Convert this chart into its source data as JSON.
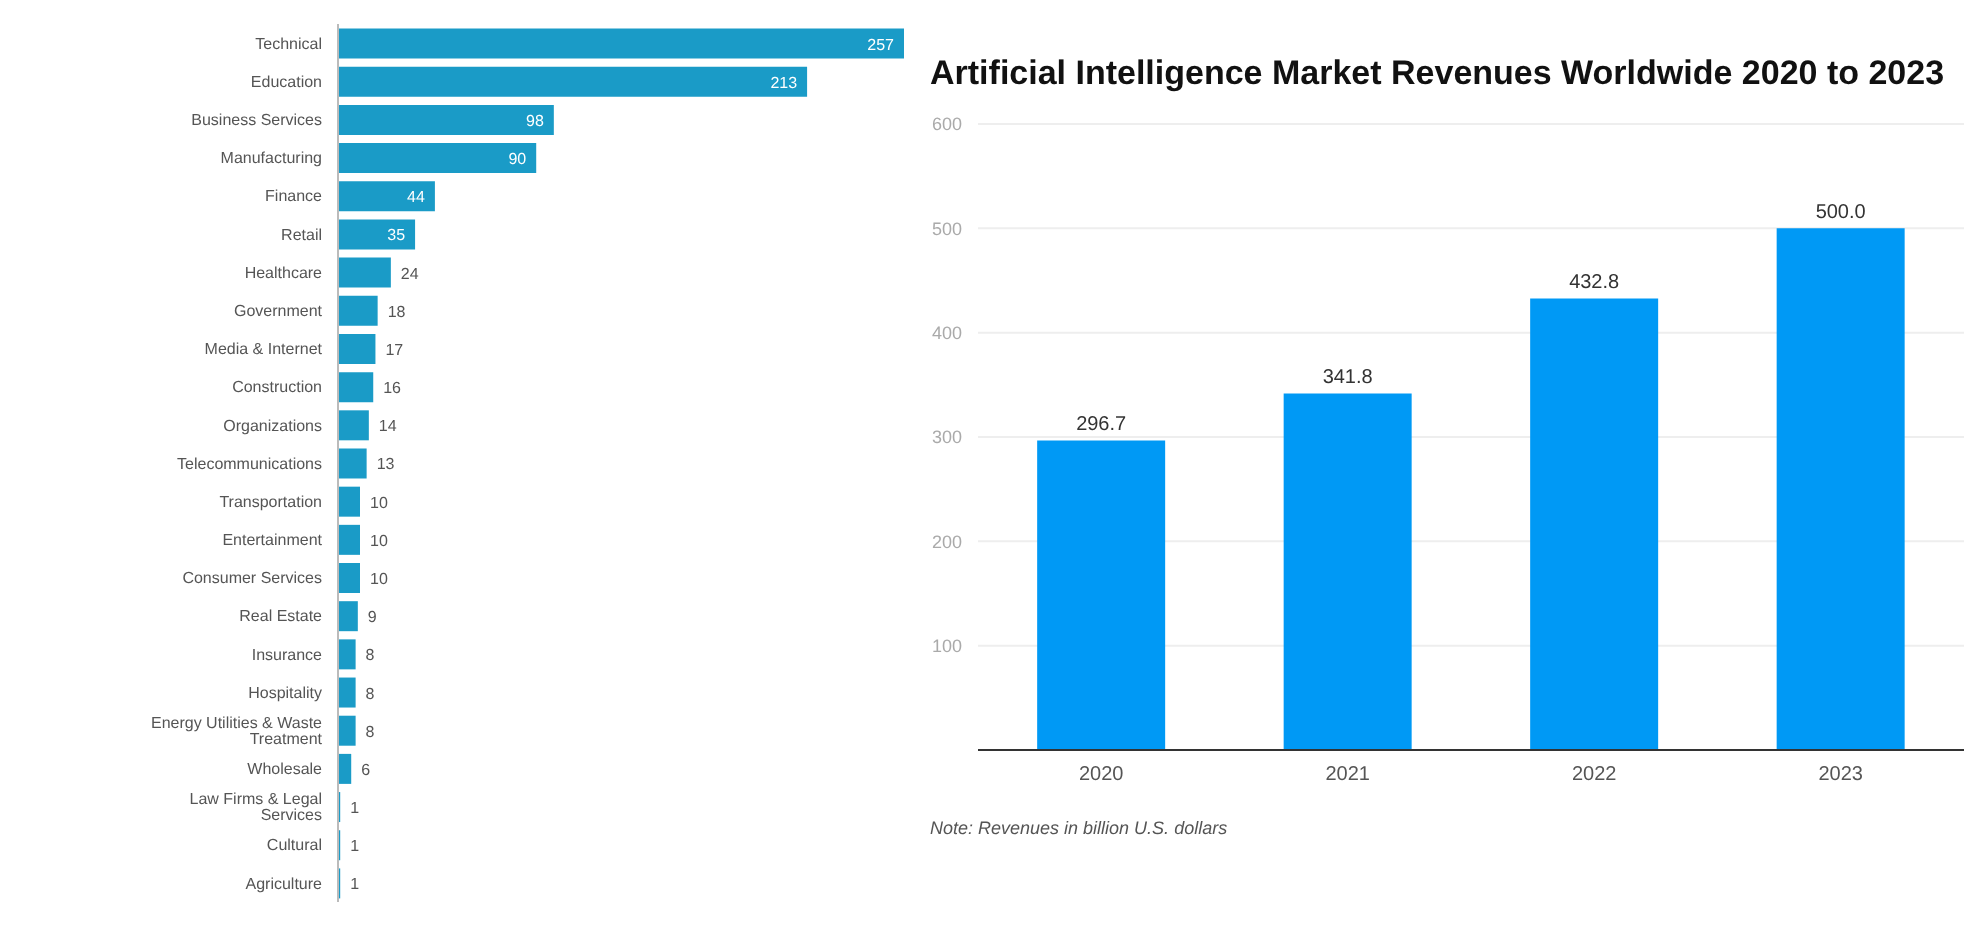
{
  "chart_data": [
    {
      "type": "bar",
      "orientation": "horizontal",
      "data_labels": true,
      "color": "#1a9bc7",
      "categories": [
        "Technical",
        "Education",
        "Business Services",
        "Manufacturing",
        "Finance",
        "Retail",
        "Healthcare",
        "Government",
        "Media & Internet",
        "Construction",
        "Organizations",
        "Telecommunications",
        "Transportation",
        "Entertainment",
        "Consumer Services",
        "Real Estate",
        "Insurance",
        "Hospitality",
        "Energy Utilities & Waste Treatment",
        "Wholesale",
        "Law Firms & Legal Services",
        "Cultural",
        "Agriculture"
      ],
      "values": [
        257,
        213,
        98,
        90,
        44,
        35,
        24,
        18,
        17,
        16,
        14,
        13,
        10,
        10,
        10,
        9,
        8,
        8,
        8,
        6,
        1,
        1,
        1
      ]
    },
    {
      "type": "bar",
      "title": "Artificial Intelligence Market Revenues Worldwide 2020 to 2023",
      "color": "#0099f5",
      "grid": "y",
      "value_labels": [
        "296.7",
        "341.8",
        "432.8",
        "500.0"
      ],
      "categories": [
        "2020",
        "2021",
        "2022",
        "2023"
      ],
      "values": [
        296.7,
        341.8,
        432.8,
        500.0
      ],
      "ylim": [
        0,
        600
      ],
      "yticks": [
        {
          "value": 0,
          "label": null
        },
        100,
        200,
        300,
        400,
        500,
        600
      ],
      "annotations": [
        "Note: Revenues in billion U.S. dollars"
      ]
    }
  ]
}
